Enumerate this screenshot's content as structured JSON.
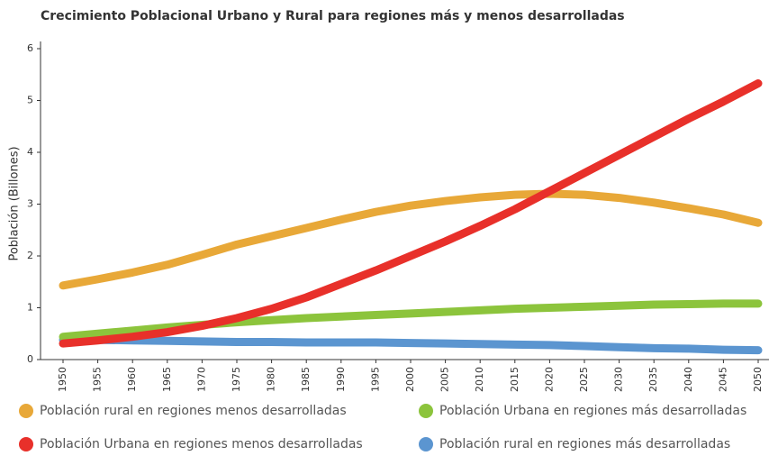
{
  "chart_data": {
    "type": "line",
    "title": "Crecimiento Poblacional Urbano y Rural para regiones más y menos desarrolladas",
    "y_label": "Población (Billones)",
    "x": [
      1950,
      1955,
      1960,
      1965,
      1970,
      1975,
      1980,
      1985,
      1990,
      1995,
      2000,
      2005,
      2010,
      2015,
      2020,
      2025,
      2030,
      2035,
      2040,
      2045,
      2050
    ],
    "xlim": [
      1950,
      2050
    ],
    "xticks": [
      1950,
      1955,
      1960,
      1965,
      1970,
      1975,
      1980,
      1985,
      1990,
      1995,
      2000,
      2005,
      2010,
      2015,
      2020,
      2025,
      2030,
      2035,
      2040,
      2045,
      2050
    ],
    "ylim": [
      0,
      6
    ],
    "yticks": [
      0,
      1,
      2,
      3,
      4,
      5,
      6
    ],
    "series": [
      {
        "name": "Población rural en regiones menos desarrolladas",
        "color": "#e8a838",
        "values": [
          1.43,
          1.55,
          1.68,
          1.83,
          2.02,
          2.22,
          2.38,
          2.54,
          2.7,
          2.85,
          2.97,
          3.06,
          3.13,
          3.18,
          3.2,
          3.18,
          3.12,
          3.03,
          2.92,
          2.8,
          2.64
        ]
      },
      {
        "name": "Población Urbana en regiones más desarrolladas",
        "color": "#8cc43c",
        "values": [
          0.44,
          0.5,
          0.56,
          0.62,
          0.67,
          0.72,
          0.76,
          0.8,
          0.83,
          0.86,
          0.89,
          0.92,
          0.95,
          0.98,
          1.0,
          1.02,
          1.04,
          1.06,
          1.07,
          1.08,
          1.08
        ]
      },
      {
        "name": "Población Urbana en regiones menos desarrolladas",
        "color": "#e8302a",
        "values": [
          0.31,
          0.37,
          0.44,
          0.53,
          0.65,
          0.8,
          0.98,
          1.2,
          1.46,
          1.72,
          2.0,
          2.28,
          2.58,
          2.9,
          3.25,
          3.6,
          3.95,
          4.3,
          4.65,
          4.98,
          5.33
        ]
      },
      {
        "name": "Población rural en regiones más desarrolladas",
        "color": "#5b95d0",
        "values": [
          0.38,
          0.38,
          0.37,
          0.36,
          0.35,
          0.34,
          0.34,
          0.33,
          0.33,
          0.33,
          0.32,
          0.31,
          0.3,
          0.29,
          0.28,
          0.26,
          0.24,
          0.22,
          0.21,
          0.19,
          0.18
        ]
      }
    ]
  }
}
